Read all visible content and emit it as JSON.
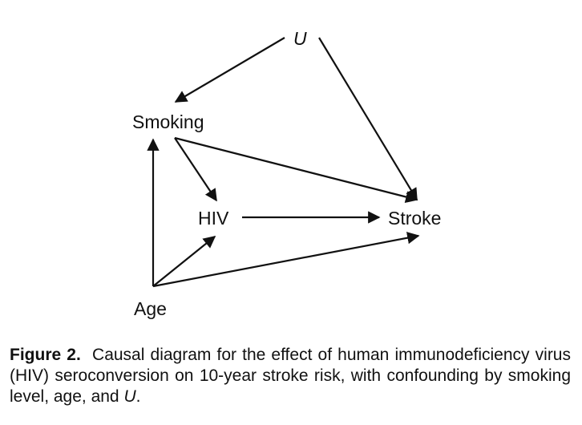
{
  "diagram": {
    "nodes": {
      "u": "U",
      "smoking": "Smoking",
      "hiv": "HIV",
      "stroke": "Stroke",
      "age": "Age"
    },
    "edges": [
      {
        "from": "U",
        "to": "Smoking"
      },
      {
        "from": "U",
        "to": "Stroke"
      },
      {
        "from": "Smoking",
        "to": "HIV"
      },
      {
        "from": "Smoking",
        "to": "Stroke"
      },
      {
        "from": "HIV",
        "to": "Stroke"
      },
      {
        "from": "Age",
        "to": "Smoking"
      },
      {
        "from": "Age",
        "to": "HIV"
      },
      {
        "from": "Age",
        "to": "Stroke"
      }
    ]
  },
  "caption": {
    "label": "Figure 2.",
    "text_part1": "Causal diagram for the effect of human immunodeficiency virus (HIV) seroconversion on 10-year stroke risk, with confounding by smoking level, age, and ",
    "italic": "U",
    "text_part2": "."
  }
}
